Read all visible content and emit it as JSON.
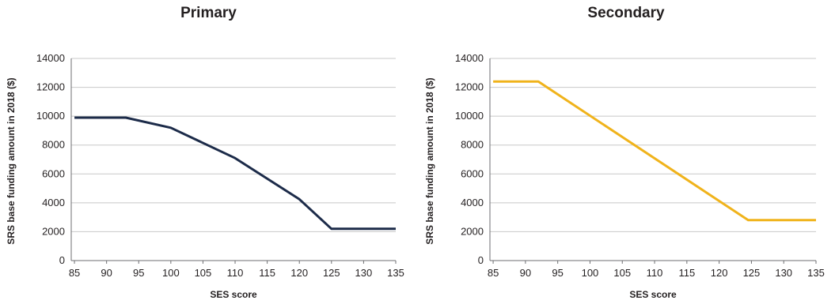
{
  "chart_data": [
    {
      "type": "line",
      "title": "Primary",
      "xlabel": "SES score",
      "ylabel": "SRS base funding amount in 2018 ($)",
      "xlim": [
        84.5,
        135
      ],
      "ylim": [
        0,
        14000
      ],
      "xticks": [
        85,
        90,
        95,
        100,
        105,
        110,
        115,
        120,
        125,
        130,
        135
      ],
      "yticks": [
        0,
        2000,
        4000,
        6000,
        8000,
        10000,
        12000,
        14000
      ],
      "grid": true,
      "color": "#1c2b49",
      "series": [
        {
          "values": [
            [
              85,
              9900
            ],
            [
              93,
              9900
            ],
            [
              100,
              9200
            ],
            [
              110,
              7100
            ],
            [
              120,
              4250
            ],
            [
              125,
              2200
            ],
            [
              135,
              2200
            ]
          ]
        }
      ]
    },
    {
      "type": "line",
      "title": "Secondary",
      "xlabel": "SES score",
      "ylabel": "SRS base funding amount in 2018 ($)",
      "xlim": [
        84.5,
        135
      ],
      "ylim": [
        0,
        14000
      ],
      "xticks": [
        85,
        90,
        95,
        100,
        105,
        110,
        115,
        120,
        125,
        130,
        135
      ],
      "yticks": [
        0,
        2000,
        4000,
        6000,
        8000,
        10000,
        12000,
        14000
      ],
      "grid": true,
      "color": "#f0b31b",
      "series": [
        {
          "values": [
            [
              85,
              12400
            ],
            [
              92,
              12400
            ],
            [
              124.5,
              2800
            ],
            [
              135,
              2800
            ]
          ]
        }
      ]
    }
  ]
}
